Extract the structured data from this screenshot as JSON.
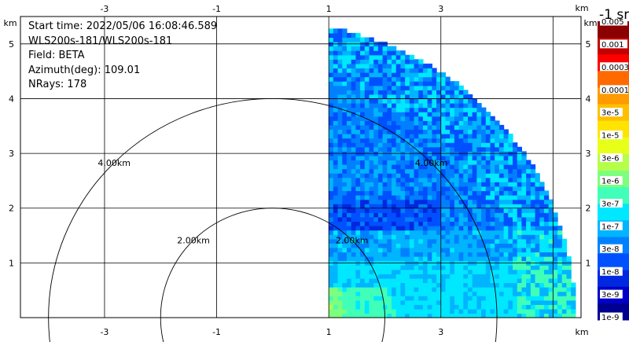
{
  "chart_data": {
    "type": "heatmap",
    "subtype": "ppi-sector",
    "info": {
      "start_time": "Start time: 2022/05/06 16:08:46.589",
      "instrument": "WLS200s-181/WLS200s-181",
      "field": "Field: BETA",
      "azimuth": "Azimuth(deg): 109.01",
      "nrays": "NRays: 178"
    },
    "x_axis": {
      "unit": "km",
      "range": [
        -4.5,
        5.5
      ],
      "ticks": [
        -3,
        -1,
        1,
        3
      ]
    },
    "y_axis": {
      "unit": "km",
      "range": [
        0,
        5.5
      ],
      "ticks": [
        1,
        2,
        3,
        4,
        5
      ]
    },
    "grid": true,
    "range_rings": [
      {
        "radius_km": 2,
        "label": "2.00km"
      },
      {
        "radius_km": 4,
        "label": "4.00km"
      }
    ],
    "sector": {
      "x_min_km": 1.0,
      "y_min_km": 0.0,
      "max_range_km": 5.4
    },
    "colorbar": {
      "unit_label": "-1 sr",
      "labels": [
        "0.005",
        "0.001",
        "0.0003",
        "0.0001",
        "3e-5",
        "1e-5",
        "3e-6",
        "1e-6",
        "3e-7",
        "1e-7",
        "3e-8",
        "1e-8",
        "3e-9",
        "1e-9"
      ],
      "colors": [
        "#8b0000",
        "#c40000",
        "#ff0000",
        "#ff6a00",
        "#ff9a00",
        "#ffbf00",
        "#ffe400",
        "#e8ff1a",
        "#b5ff4a",
        "#7dff7d",
        "#40ffb8",
        "#00e8ff",
        "#00b4ff",
        "#0080ff",
        "#0050ff",
        "#0028e0",
        "#0000c8",
        "#000090"
      ]
    }
  }
}
